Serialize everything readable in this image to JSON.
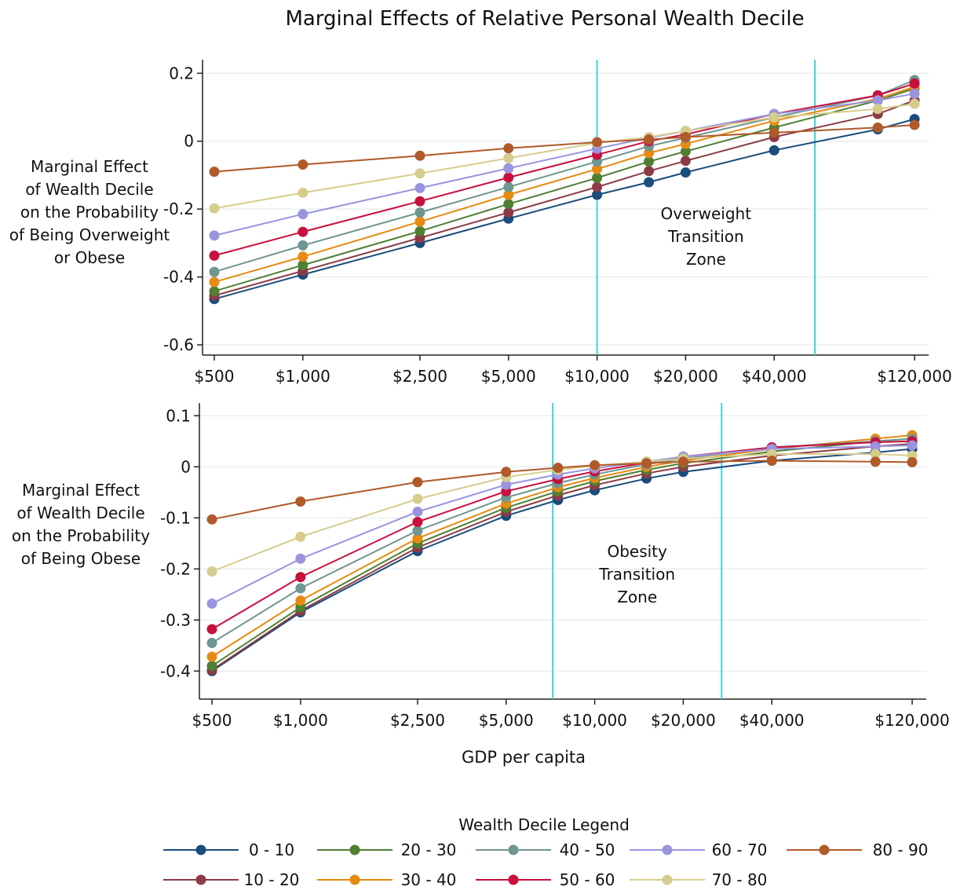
{
  "chart_data": {
    "type": "line",
    "title": "Marginal Effects of Relative Personal Wealth Decile",
    "xlabel": "GDP per capita",
    "legend_title": "Wealth Decile Legend",
    "legend_placement": "bottom",
    "x_scale": "log",
    "x_tick_labels": [
      "$500",
      "$1,000",
      "$2,500",
      "$5,000",
      "$10,000",
      "$20,000",
      "$40,000",
      "$120,000"
    ],
    "x_tick_values": [
      500,
      1000,
      2500,
      5000,
      10000,
      20000,
      40000,
      120000
    ],
    "legend": [
      {
        "label": "0 - 10",
        "color": "#1a4c7c"
      },
      {
        "label": "20 - 30",
        "color": "#4f7f32"
      },
      {
        "label": "40 - 50",
        "color": "#6f9690"
      },
      {
        "label": "60 - 70",
        "color": "#9a94e0"
      },
      {
        "label": "80 - 90",
        "color": "#b05a2a"
      },
      {
        "label": "10 - 20",
        "color": "#8c3b46"
      },
      {
        "label": "30 - 40",
        "color": "#e68a12"
      },
      {
        "label": "50 - 60",
        "color": "#c8103e"
      },
      {
        "label": "70 - 80",
        "color": "#d6cc8c"
      }
    ],
    "panels": [
      {
        "ylabel": [
          "Marginal Effect",
          "of Wealth Decile",
          "on the Probability",
          "of Being Overweight",
          "or Obese"
        ],
        "ylim": [
          -0.63,
          0.24
        ],
        "y_ticks": [
          0.2,
          0,
          -0.2,
          -0.4,
          -0.6
        ],
        "y_tick_labels": [
          "0.2",
          "0",
          "-0.2",
          "-0.4",
          "-0.6"
        ],
        "grid": true,
        "x": [
          500,
          1000,
          2500,
          5000,
          10000,
          15000,
          20000,
          40000,
          90000,
          120000
        ],
        "zone": {
          "x_from": 10000,
          "x_to": 55000,
          "label": [
            "Overweight",
            "Transition",
            "Zone"
          ]
        },
        "series": [
          {
            "name": "0 - 10",
            "color": "#1a4c7c",
            "values": [
              -0.465,
              -0.393,
              -0.3,
              -0.228,
              -0.158,
              -0.121,
              -0.092,
              -0.027,
              0.035,
              0.065
            ]
          },
          {
            "name": "10 - 20",
            "color": "#8c3b46",
            "values": [
              -0.455,
              -0.382,
              -0.285,
              -0.21,
              -0.135,
              -0.088,
              -0.058,
              0.012,
              0.08,
              0.12
            ]
          },
          {
            "name": "20 - 30",
            "color": "#4f7f32",
            "values": [
              -0.442,
              -0.365,
              -0.265,
              -0.185,
              -0.108,
              -0.06,
              -0.03,
              0.04,
              0.12,
              0.155
            ]
          },
          {
            "name": "30 - 40",
            "color": "#e68a12",
            "values": [
              -0.415,
              -0.34,
              -0.237,
              -0.158,
              -0.082,
              -0.035,
              -0.008,
              0.06,
              0.125,
              0.16
            ]
          },
          {
            "name": "40 - 50",
            "color": "#6f9690",
            "values": [
              -0.385,
              -0.307,
              -0.21,
              -0.135,
              -0.06,
              -0.015,
              0.01,
              0.07,
              0.135,
              0.18
            ]
          },
          {
            "name": "50 - 60",
            "color": "#c8103e",
            "values": [
              -0.337,
              -0.267,
              -0.177,
              -0.107,
              -0.04,
              0.0,
              0.02,
              0.08,
              0.135,
              0.17
            ]
          },
          {
            "name": "60 - 70",
            "color": "#9a94e0",
            "values": [
              -0.278,
              -0.215,
              -0.138,
              -0.08,
              -0.022,
              0.01,
              0.03,
              0.08,
              0.12,
              0.14
            ]
          },
          {
            "name": "70 - 80",
            "color": "#d6cc8c",
            "values": [
              -0.198,
              -0.152,
              -0.095,
              -0.05,
              -0.005,
              0.012,
              0.03,
              0.07,
              0.095,
              0.11
            ]
          },
          {
            "name": "80 - 90",
            "color": "#b05a2a",
            "values": [
              -0.09,
              -0.069,
              -0.043,
              -0.021,
              -0.003,
              0.005,
              0.012,
              0.025,
              0.04,
              0.048
            ]
          }
        ]
      },
      {
        "ylabel": [
          "Marginal Effect",
          "of Wealth Decile",
          "on the Probability",
          "of Being Obese"
        ],
        "ylim": [
          -0.455,
          0.125
        ],
        "y_ticks": [
          0.1,
          0,
          -0.1,
          -0.2,
          -0.3,
          -0.4
        ],
        "y_tick_labels": [
          "0.1",
          "0",
          "-0.1",
          "-0.2",
          "-0.3",
          "-0.4"
        ],
        "grid": true,
        "x": [
          500,
          1000,
          2500,
          5000,
          7500,
          10000,
          15000,
          20000,
          40000,
          90000,
          120000
        ],
        "zone": {
          "x_from": 7200,
          "x_to": 27000,
          "label": [
            "Obesity",
            "Transition",
            "Zone"
          ]
        },
        "series": [
          {
            "name": "0 - 10",
            "color": "#1a4c7c",
            "values": [
              -0.4,
              -0.285,
              -0.165,
              -0.096,
              -0.065,
              -0.046,
              -0.023,
              -0.01,
              0.012,
              0.028,
              0.035
            ]
          },
          {
            "name": "10 - 20",
            "color": "#8c3b46",
            "values": [
              -0.398,
              -0.282,
              -0.158,
              -0.088,
              -0.056,
              -0.036,
              -0.013,
              0.0,
              0.022,
              0.04,
              0.045
            ]
          },
          {
            "name": "20 - 30",
            "color": "#4f7f32",
            "values": [
              -0.39,
              -0.275,
              -0.15,
              -0.08,
              -0.048,
              -0.028,
              -0.006,
              0.007,
              0.03,
              0.05,
              0.055
            ]
          },
          {
            "name": "30 - 40",
            "color": "#e68a12",
            "values": [
              -0.372,
              -0.262,
              -0.14,
              -0.072,
              -0.04,
              -0.022,
              0.0,
              0.012,
              0.035,
              0.055,
              0.062
            ]
          },
          {
            "name": "40 - 50",
            "color": "#6f9690",
            "values": [
              -0.345,
              -0.238,
              -0.125,
              -0.06,
              -0.032,
              -0.015,
              0.005,
              0.016,
              0.038,
              0.05,
              0.055
            ]
          },
          {
            "name": "50 - 60",
            "color": "#c8103e",
            "values": [
              -0.318,
              -0.216,
              -0.108,
              -0.048,
              -0.024,
              -0.009,
              0.008,
              0.02,
              0.038,
              0.048,
              0.05
            ]
          },
          {
            "name": "60 - 70",
            "color": "#9a94e0",
            "values": [
              -0.268,
              -0.18,
              -0.088,
              -0.035,
              -0.015,
              -0.003,
              0.01,
              0.02,
              0.035,
              0.04,
              0.042
            ]
          },
          {
            "name": "70 - 80",
            "color": "#d6cc8c",
            "values": [
              -0.205,
              -0.137,
              -0.063,
              -0.02,
              -0.006,
              0.002,
              0.01,
              0.016,
              0.025,
              0.025,
              0.022
            ]
          },
          {
            "name": "80 - 90",
            "color": "#b05a2a",
            "values": [
              -0.103,
              -0.068,
              -0.03,
              -0.01,
              -0.002,
              0.003,
              0.007,
              0.01,
              0.012,
              0.01,
              0.009
            ]
          }
        ]
      }
    ]
  }
}
